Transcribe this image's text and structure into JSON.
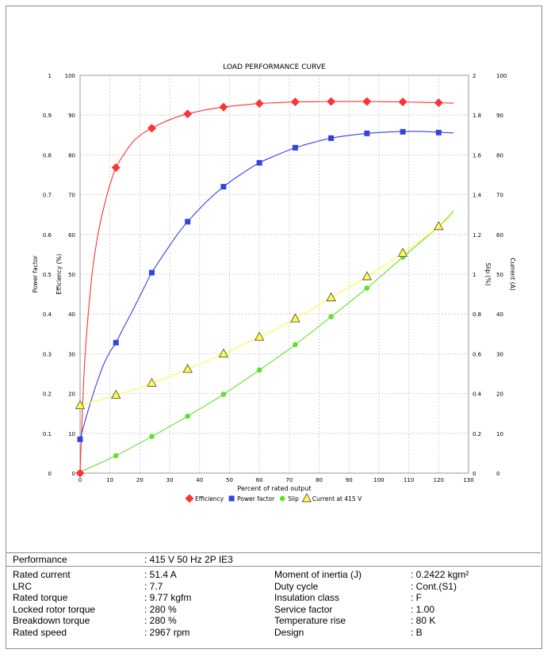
{
  "chart_data": {
    "type": "line",
    "title": "LOAD PERFORMANCE CURVE",
    "xlabel": "Percent of rated output",
    "xlim": [
      0,
      130
    ],
    "xticks": [
      0,
      10,
      20,
      30,
      40,
      50,
      60,
      70,
      80,
      90,
      100,
      110,
      120,
      130
    ],
    "grid": true,
    "legend_placement": "bottom",
    "axes": {
      "power_factor": {
        "label": "Power factor",
        "range": [
          0,
          1
        ],
        "ticks": [
          "0",
          "0.1",
          "0.2",
          "0.3",
          "0.4",
          "0.5",
          "0.6",
          "0.7",
          "0.8",
          "0.9",
          "1"
        ]
      },
      "efficiency": {
        "label": "Efficiency (%)",
        "range": [
          0,
          100
        ],
        "ticks": [
          "0",
          "10",
          "20",
          "30",
          "40",
          "50",
          "60",
          "70",
          "80",
          "90",
          "100"
        ]
      },
      "slip": {
        "label": "Slip (%)",
        "range": [
          0,
          2
        ],
        "ticks": [
          "0",
          "0.2",
          "0.4",
          "0.6",
          "0.8",
          "1",
          "1.2",
          "1.4",
          "1.6",
          "1.8",
          "2"
        ]
      },
      "current": {
        "label": "Current (A)",
        "range": [
          0,
          100
        ],
        "ticks": [
          "0",
          "10",
          "20",
          "30",
          "40",
          "50",
          "60",
          "70",
          "80",
          "90",
          "100"
        ]
      }
    },
    "series": [
      {
        "name": "Efficiency",
        "axis": "efficiency",
        "color": "#ff3333",
        "marker": "diamond",
        "x": [
          0,
          12,
          24,
          36,
          48,
          60,
          72,
          84,
          96,
          108,
          120
        ],
        "y": [
          0,
          76.8,
          86.7,
          90.3,
          92.0,
          92.9,
          93.3,
          93.4,
          93.4,
          93.3,
          93.1
        ],
        "curve_x": [
          0,
          1,
          2,
          4,
          6,
          8,
          10,
          12,
          15,
          18,
          21,
          24,
          28,
          32,
          36,
          42,
          48,
          54,
          60,
          66,
          72,
          78,
          84,
          90,
          96,
          102,
          108,
          114,
          120,
          125
        ],
        "curve_y": [
          0,
          20,
          33,
          50,
          60,
          67,
          72.5,
          76.8,
          80.5,
          83.5,
          85.4,
          86.7,
          88.2,
          89.4,
          90.3,
          91.3,
          92.0,
          92.5,
          92.9,
          93.1,
          93.3,
          93.35,
          93.4,
          93.4,
          93.4,
          93.35,
          93.3,
          93.2,
          93.1,
          93.0
        ]
      },
      {
        "name": "Power factor",
        "axis": "power_factor",
        "color": "#3344dd",
        "marker": "square",
        "x": [
          0,
          12,
          24,
          36,
          48,
          60,
          72,
          84,
          96,
          108,
          120
        ],
        "y": [
          0.085,
          0.328,
          0.504,
          0.632,
          0.72,
          0.78,
          0.818,
          0.842,
          0.854,
          0.858,
          0.856
        ],
        "curve_x": [
          0,
          2,
          4,
          6,
          8,
          10,
          12,
          15,
          18,
          21,
          24,
          28,
          32,
          36,
          42,
          48,
          54,
          60,
          66,
          72,
          78,
          84,
          90,
          96,
          102,
          108,
          114,
          120,
          125
        ],
        "curve_y": [
          0.085,
          0.14,
          0.19,
          0.235,
          0.275,
          0.305,
          0.328,
          0.372,
          0.415,
          0.46,
          0.504,
          0.55,
          0.594,
          0.632,
          0.68,
          0.72,
          0.752,
          0.78,
          0.8,
          0.818,
          0.831,
          0.842,
          0.849,
          0.854,
          0.857,
          0.859,
          0.859,
          0.857,
          0.855
        ]
      },
      {
        "name": "Slip",
        "axis": "slip",
        "color": "#66dd33",
        "marker": "circle",
        "x": [
          12,
          24,
          36,
          48,
          60,
          72,
          84,
          96,
          108,
          120
        ],
        "y": [
          0.088,
          0.184,
          0.286,
          0.396,
          0.518,
          0.646,
          0.786,
          0.93,
          1.086,
          1.24
        ],
        "curve_x": [
          0,
          12,
          24,
          36,
          48,
          60,
          72,
          84,
          96,
          108,
          120,
          125
        ],
        "curve_y": [
          0.005,
          0.088,
          0.184,
          0.286,
          0.396,
          0.518,
          0.646,
          0.786,
          0.93,
          1.086,
          1.24,
          1.32
        ]
      },
      {
        "name": "Current at 415 V",
        "axis": "current",
        "color": "#ffff44",
        "marker": "triangle",
        "x": [
          0,
          12,
          24,
          36,
          48,
          60,
          72,
          84,
          96,
          108,
          120
        ],
        "y": [
          17.0,
          19.6,
          22.6,
          26.1,
          30.0,
          34.2,
          38.8,
          44.1,
          49.4,
          55.3,
          62.0
        ],
        "curve_x": [
          0,
          6,
          12,
          18,
          24,
          30,
          36,
          42,
          48,
          54,
          60,
          66,
          72,
          78,
          84,
          90,
          96,
          102,
          108,
          114,
          120,
          125
        ],
        "curve_y": [
          17.0,
          18.3,
          19.6,
          21.0,
          22.6,
          24.3,
          26.1,
          28.0,
          30.0,
          32.1,
          34.2,
          36.4,
          38.8,
          41.4,
          44.1,
          46.7,
          49.4,
          52.3,
          55.3,
          58.5,
          62.0,
          65.0
        ]
      }
    ]
  },
  "table": {
    "performance": {
      "label": "Performance",
      "value": ": 415 V 50 Hz 2P IE3"
    },
    "rows": [
      {
        "l1": "Rated current",
        "v1": ": 51.4 A",
        "l2": "Moment of inertia (J)",
        "v2": ": 0.2422 kgm²"
      },
      {
        "l1": "LRC",
        "v1": ": 7.7",
        "l2": "Duty cycle",
        "v2": ": Cont.(S1)"
      },
      {
        "l1": "Rated torque",
        "v1": ": 9.77 kgfm",
        "l2": "Insulation class",
        "v2": ": F"
      },
      {
        "l1": "Locked rotor torque",
        "v1": ": 280 %",
        "l2": "Service factor",
        "v2": ": 1.00"
      },
      {
        "l1": "Breakdown torque",
        "v1": ": 280 %",
        "l2": "Temperature rise",
        "v2": ": 80 K"
      },
      {
        "l1": "Rated speed",
        "v1": ": 2967 rpm",
        "l2": "Design",
        "v2": ": B"
      }
    ]
  }
}
